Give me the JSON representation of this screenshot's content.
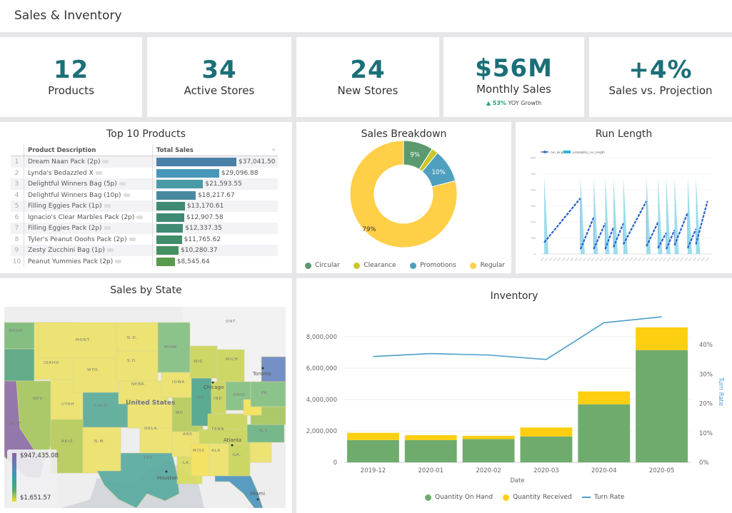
{
  "header": {
    "title": "Sales & Inventory"
  },
  "kpis": [
    {
      "value": "12",
      "label": "Products"
    },
    {
      "value": "34",
      "label": "Active Stores"
    },
    {
      "value": "24",
      "label": "New Stores"
    },
    {
      "value": "$56M",
      "label": "Monthly Sales",
      "sub_pct": "53%",
      "sub_text": " YOY Growth"
    },
    {
      "value": "+4%",
      "label": "Sales vs. Projection"
    }
  ],
  "top_products": {
    "title": "Top 10 Products",
    "col_desc": "Product Description",
    "col_sales": "Total Sales",
    "max": 37041.5,
    "rows": [
      {
        "n": "1",
        "desc": "Dream Naan Pack (2p)",
        "value": 37041.5,
        "label": "$37,041.50",
        "color": "#4a7fa8"
      },
      {
        "n": "2",
        "desc": "Lynda's Bedazzled X",
        "value": 29096.88,
        "label": "$29,096.88",
        "color": "#4897b8"
      },
      {
        "n": "3",
        "desc": "Delightful Winners Bag (5p)",
        "value": 21593.55,
        "label": "$21,593.55",
        "color": "#4a9aa6"
      },
      {
        "n": "4",
        "desc": "Delightful Winners Bag (10p)",
        "value": 18217.67,
        "label": "$18,217.67",
        "color": "#4a8aa0"
      },
      {
        "n": "5",
        "desc": "Filling Eggies Pack (1p)",
        "value": 13170.61,
        "label": "$13,170.61",
        "color": "#3f8a75"
      },
      {
        "n": "6",
        "desc": "Ignacio's Clear Marbles Pack (2p)",
        "value": 12907.58,
        "label": "$12,907.58",
        "color": "#3f8a75"
      },
      {
        "n": "7",
        "desc": "Filling Eggies Pack (2p)",
        "value": 12337.35,
        "label": "$12,337.35",
        "color": "#3f8a75"
      },
      {
        "n": "8",
        "desc": "Tyler's Peanut Ooohs Pack (2p)",
        "value": 11765.62,
        "label": "$11,765.62",
        "color": "#428d69"
      },
      {
        "n": "9",
        "desc": "Zesty Zucchini Bag (1p)",
        "value": 10280.37,
        "label": "$10,280.37",
        "color": "#449060"
      },
      {
        "n": "10",
        "desc": "Peanut Yummies Pack (2p)",
        "value": 8545.64,
        "label": "$8,545.64",
        "color": "#5a9a4c"
      }
    ]
  },
  "chart_data": [
    {
      "type": "pie",
      "title": "Sales Breakdown",
      "categories": [
        "Circular",
        "Clearance",
        "Promotions",
        "Regular"
      ],
      "values": [
        9,
        2,
        10,
        79
      ],
      "labels": [
        "9%",
        "",
        "10%",
        "79%"
      ],
      "colors": [
        "#5b9a6e",
        "#c9c72a",
        "#4f9fbf",
        "#ffcf48"
      ],
      "legend": "bottom"
    },
    {
      "type": "line",
      "title": "Run Length",
      "series": [
        {
          "name": "run_length"
        },
        {
          "name": "probability_run_length"
        }
      ],
      "ylim": [
        0,
        600
      ],
      "legend": "top-left"
    },
    {
      "type": "bar",
      "title": "Inventory",
      "xlabel": "Date",
      "ylabel": "",
      "y2label": "Turn Rate",
      "categories": [
        "2019-12",
        "2020-01",
        "2020-02",
        "2020-03",
        "2020-04",
        "2020-05"
      ],
      "ylim": [
        0,
        9000000
      ],
      "yticks": [
        "0",
        "2,000,000",
        "4,000,000",
        "6,000,000",
        "8,000,000"
      ],
      "y2lim": [
        0,
        50
      ],
      "y2ticks": [
        "0%",
        "10%",
        "20%",
        "30%",
        "40%"
      ],
      "series": [
        {
          "name": "Quantity On Hand",
          "type": "bar",
          "color": "#6fab6d",
          "values": [
            1420000,
            1420000,
            1480000,
            1650000,
            3700000,
            7150000
          ]
        },
        {
          "name": "Quantity Received",
          "type": "bar",
          "color": "#fccf11",
          "values": [
            460000,
            310000,
            210000,
            570000,
            820000,
            1450000
          ]
        },
        {
          "name": "Turn Rate",
          "type": "line",
          "color": "#4a9fc8",
          "values": [
            36,
            37,
            36.5,
            35,
            47.5,
            49.5
          ]
        }
      ],
      "legend": "bottom"
    }
  ],
  "map": {
    "title": "Sales by State",
    "legend_max": "$947,435.08",
    "legend_min": "$1,651.57",
    "country_label": "United States"
  }
}
